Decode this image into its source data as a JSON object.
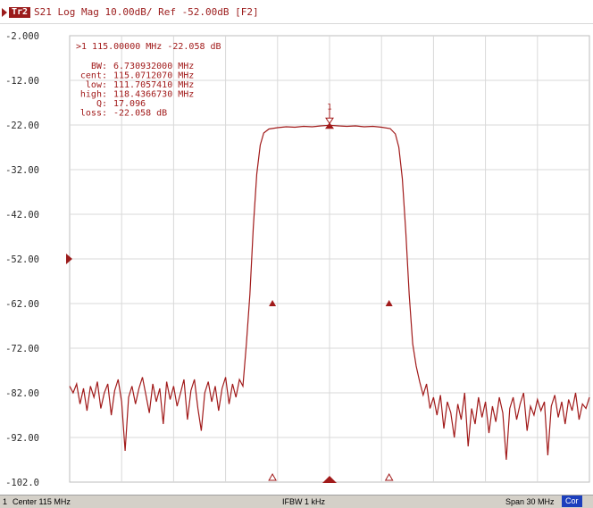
{
  "header": {
    "trace_id": "Tr2",
    "title": "S21 Log Mag 10.00dB/ Ref -52.00dB [F2]"
  },
  "marker_readout": {
    "marker_line": ">1  115.00000 MHz -22.058 dB",
    "lines": [
      {
        "label": "BW:",
        "value": "6.730932000 MHz"
      },
      {
        "label": "cent:",
        "value": "115.0712070 MHz"
      },
      {
        "label": "low:",
        "value": "111.7057410 MHz"
      },
      {
        "label": "high:",
        "value": "118.4366730 MHz"
      },
      {
        "label": "Q:",
        "value": "17.096"
      },
      {
        "label": "loss:",
        "value": "-22.058 dB"
      }
    ]
  },
  "status_bar": {
    "channel": "1",
    "center": "Center 115 MHz",
    "ifbw": "IFBW 1 kHz",
    "span": "Span 30 MHz",
    "cor": "Cor"
  },
  "colors": {
    "trace": "#a11a1a",
    "grid": "#d9d9d9",
    "ref_marker": "#9b1b1b",
    "cor_badge": "#1c3fbd"
  },
  "chart_data": {
    "type": "line",
    "title": "S21 Log Mag 10.00dB/ Ref -52.00dB [F2]",
    "xlabel": "",
    "ylabel": "",
    "x_unit": "MHz",
    "y_unit": "dB",
    "xlim": [
      100,
      130
    ],
    "ylim": [
      -102,
      -2
    ],
    "yticks": [
      "-2.000",
      "-12.00",
      "-22.00",
      "-32.00",
      "-42.00",
      "-52.00",
      "-62.00",
      "-72.00",
      "-82.00",
      "-92.00",
      "-102.0"
    ],
    "reference_level": -52,
    "grid": true,
    "series": [
      {
        "name": "S21",
        "points": [
          [
            100.0,
            -80.5
          ],
          [
            100.2,
            -82.0
          ],
          [
            100.4,
            -80.0
          ],
          [
            100.6,
            -84.5
          ],
          [
            100.8,
            -81.0
          ],
          [
            101.0,
            -86.0
          ],
          [
            101.2,
            -80.5
          ],
          [
            101.4,
            -83.0
          ],
          [
            101.6,
            -79.5
          ],
          [
            101.8,
            -85.5
          ],
          [
            102.0,
            -82.0
          ],
          [
            102.2,
            -80.0
          ],
          [
            102.4,
            -87.0
          ],
          [
            102.6,
            -81.5
          ],
          [
            102.8,
            -79.0
          ],
          [
            103.0,
            -84.0
          ],
          [
            103.2,
            -95.0
          ],
          [
            103.4,
            -83.0
          ],
          [
            103.6,
            -80.5
          ],
          [
            103.8,
            -84.5
          ],
          [
            104.0,
            -81.0
          ],
          [
            104.2,
            -78.5
          ],
          [
            104.4,
            -82.5
          ],
          [
            104.6,
            -86.5
          ],
          [
            104.8,
            -80.0
          ],
          [
            105.0,
            -84.0
          ],
          [
            105.2,
            -81.0
          ],
          [
            105.4,
            -89.0
          ],
          [
            105.6,
            -79.5
          ],
          [
            105.8,
            -83.5
          ],
          [
            106.0,
            -80.5
          ],
          [
            106.2,
            -85.0
          ],
          [
            106.4,
            -82.0
          ],
          [
            106.6,
            -79.0
          ],
          [
            106.8,
            -88.0
          ],
          [
            107.0,
            -81.5
          ],
          [
            107.2,
            -79.0
          ],
          [
            107.4,
            -85.5
          ],
          [
            107.6,
            -90.5
          ],
          [
            107.8,
            -82.0
          ],
          [
            108.0,
            -79.5
          ],
          [
            108.2,
            -84.0
          ],
          [
            108.4,
            -80.5
          ],
          [
            108.6,
            -86.0
          ],
          [
            108.8,
            -81.0
          ],
          [
            109.0,
            -78.5
          ],
          [
            109.2,
            -84.5
          ],
          [
            109.4,
            -80.0
          ],
          [
            109.6,
            -83.0
          ],
          [
            109.8,
            -79.0
          ],
          [
            110.0,
            -80.5
          ],
          [
            110.2,
            -71.0
          ],
          [
            110.4,
            -60.0
          ],
          [
            110.6,
            -45.0
          ],
          [
            110.8,
            -33.0
          ],
          [
            111.0,
            -26.5
          ],
          [
            111.2,
            -23.8
          ],
          [
            111.5,
            -22.9
          ],
          [
            112.0,
            -22.6
          ],
          [
            112.5,
            -22.4
          ],
          [
            113.0,
            -22.5
          ],
          [
            113.5,
            -22.3
          ],
          [
            114.0,
            -22.4
          ],
          [
            114.5,
            -22.2
          ],
          [
            115.0,
            -22.06
          ],
          [
            115.5,
            -22.2
          ],
          [
            116.0,
            -22.3
          ],
          [
            116.5,
            -22.2
          ],
          [
            117.0,
            -22.4
          ],
          [
            117.5,
            -22.3
          ],
          [
            118.0,
            -22.5
          ],
          [
            118.5,
            -22.8
          ],
          [
            118.8,
            -24.0
          ],
          [
            119.0,
            -27.0
          ],
          [
            119.2,
            -34.0
          ],
          [
            119.4,
            -46.0
          ],
          [
            119.6,
            -60.0
          ],
          [
            119.8,
            -71.0
          ],
          [
            120.0,
            -76.0
          ],
          [
            120.2,
            -79.5
          ],
          [
            120.4,
            -82.5
          ],
          [
            120.6,
            -80.0
          ],
          [
            120.8,
            -85.5
          ],
          [
            121.0,
            -83.0
          ],
          [
            121.2,
            -87.0
          ],
          [
            121.4,
            -82.5
          ],
          [
            121.6,
            -90.0
          ],
          [
            121.8,
            -84.0
          ],
          [
            122.0,
            -86.5
          ],
          [
            122.2,
            -92.0
          ],
          [
            122.4,
            -84.5
          ],
          [
            122.6,
            -88.0
          ],
          [
            122.8,
            -82.0
          ],
          [
            123.0,
            -94.0
          ],
          [
            123.2,
            -85.5
          ],
          [
            123.4,
            -89.0
          ],
          [
            123.6,
            -83.0
          ],
          [
            123.8,
            -87.5
          ],
          [
            124.0,
            -84.0
          ],
          [
            124.2,
            -91.0
          ],
          [
            124.4,
            -85.0
          ],
          [
            124.6,
            -88.5
          ],
          [
            124.8,
            -83.0
          ],
          [
            125.0,
            -86.5
          ],
          [
            125.2,
            -97.0
          ],
          [
            125.4,
            -85.5
          ],
          [
            125.6,
            -83.0
          ],
          [
            125.8,
            -88.0
          ],
          [
            126.0,
            -84.5
          ],
          [
            126.2,
            -82.0
          ],
          [
            126.4,
            -90.5
          ],
          [
            126.6,
            -85.0
          ],
          [
            126.8,
            -87.0
          ],
          [
            127.0,
            -83.5
          ],
          [
            127.2,
            -86.0
          ],
          [
            127.4,
            -84.0
          ],
          [
            127.6,
            -96.0
          ],
          [
            127.8,
            -85.0
          ],
          [
            128.0,
            -82.5
          ],
          [
            128.2,
            -87.5
          ],
          [
            128.4,
            -84.0
          ],
          [
            128.6,
            -89.0
          ],
          [
            128.8,
            -83.5
          ],
          [
            129.0,
            -86.0
          ],
          [
            129.2,
            -82.0
          ],
          [
            129.4,
            -88.0
          ],
          [
            129.6,
            -84.5
          ],
          [
            129.8,
            -85.5
          ],
          [
            130.0,
            -83.0
          ]
        ]
      }
    ],
    "markers": [
      {
        "x": 115.0,
        "y": -22.058,
        "label": "1"
      }
    ],
    "bandwidth_markers": [
      {
        "x": 111.705741,
        "y": -62.0
      },
      {
        "x": 118.436673,
        "y": -62.0
      }
    ],
    "bottom_markers": [
      {
        "x": 111.705741,
        "style": "open"
      },
      {
        "x": 115.0,
        "style": "filled"
      },
      {
        "x": 118.436673,
        "style": "open"
      }
    ]
  }
}
